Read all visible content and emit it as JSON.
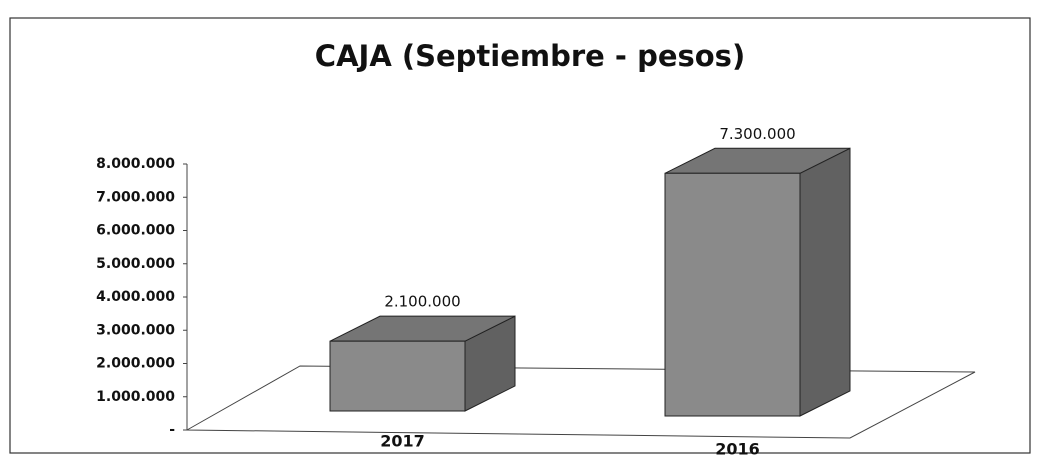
{
  "chart_data": {
    "type": "bar3d",
    "title": "CAJA (Septiembre - pesos)",
    "categories": [
      "2017",
      "2016"
    ],
    "values": [
      2100000,
      7300000
    ],
    "value_labels": [
      "2.100.000",
      "7.300.000"
    ],
    "color": "#8a8a8a",
    "ylim": [
      0,
      8000000
    ],
    "yticks": [
      {
        "value": 0,
        "label": "-"
      },
      {
        "value": 1000000,
        "label": "1.000.000"
      },
      {
        "value": 2000000,
        "label": "2.000.000"
      },
      {
        "value": 3000000,
        "label": "3.000.000"
      },
      {
        "value": 4000000,
        "label": "4.000.000"
      },
      {
        "value": 5000000,
        "label": "5.000.000"
      },
      {
        "value": 6000000,
        "label": "6.000.000"
      },
      {
        "value": 7000000,
        "label": "7.000.000"
      },
      {
        "value": 8000000,
        "label": "8.000.000"
      }
    ]
  }
}
